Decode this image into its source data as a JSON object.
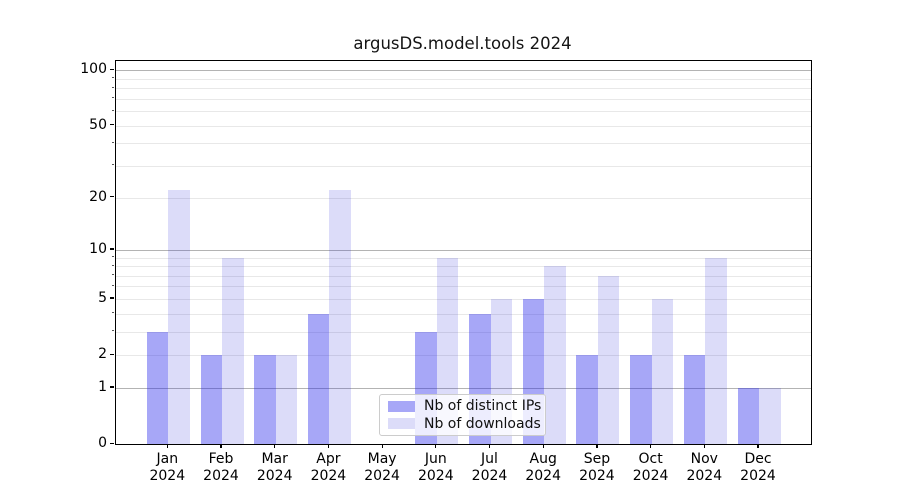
{
  "chart_data": {
    "type": "bar",
    "title": "argusDS.model.tools 2024",
    "categories": [
      "Jan",
      "Feb",
      "Mar",
      "Apr",
      "May",
      "Jun",
      "Jul",
      "Aug",
      "Sep",
      "Oct",
      "Nov",
      "Dec"
    ],
    "x_tick_second_line": "2024",
    "series": [
      {
        "name": "Nb of distinct IPs",
        "fill": "rgba(35,35,235,0.40)",
        "flat_color": "#a7a7f7",
        "values": [
          3,
          2,
          2,
          4,
          0,
          3,
          4,
          5,
          2,
          2,
          2,
          1
        ]
      },
      {
        "name": "Nb of downloads",
        "fill": "rgba(36,36,218,0.16)",
        "flat_color": "#dcdcf9",
        "values": [
          22,
          9,
          2,
          22,
          0,
          9,
          5,
          8,
          7,
          5,
          9,
          1
        ]
      }
    ],
    "xlabel": "",
    "ylabel": "",
    "y_scale": "log10(value+1)",
    "ylim": [
      0,
      113
    ],
    "y_ticks_labeled": [
      0,
      1,
      2,
      5,
      10,
      20,
      50,
      100
    ],
    "y_ticks_decade": [
      1,
      10,
      100
    ],
    "y_ticks_minor": [
      2,
      3,
      4,
      5,
      6,
      7,
      8,
      9,
      20,
      30,
      40,
      50,
      60,
      70,
      80,
      90
    ],
    "grid": true,
    "legend_position": "lower center-left"
  }
}
